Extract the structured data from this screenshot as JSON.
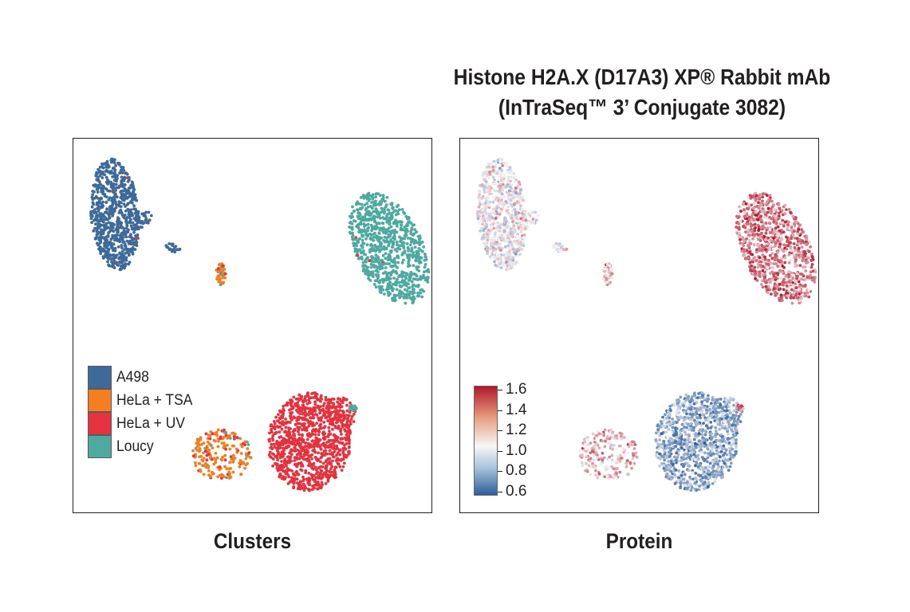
{
  "title": {
    "line1": "Histone H2A.X (D17A3) XP® Rabbit mAb",
    "line2": "(InTraSeq™ 3’ Conjugate 3082)"
  },
  "captions": {
    "left": "Clusters",
    "right": "Protein"
  },
  "legend": [
    {
      "label": "A498",
      "color": "#3e6a9a"
    },
    {
      "label": "HeLa + TSA",
      "color": "#f47e20"
    },
    {
      "label": "HeLa + UV",
      "color": "#e4323f"
    },
    {
      "label": "Loucy",
      "color": "#4ea9a1"
    }
  ],
  "colorbar": {
    "ticks": [
      "1.6",
      "1.4",
      "1.2",
      "1.0",
      "0.8",
      "0.6"
    ],
    "min": 0.6,
    "max": 1.6,
    "low_color": "#2d5d9b",
    "mid_color": "#f7f7f7",
    "high_color": "#b2182b"
  },
  "chart_data": [
    {
      "type": "scatter",
      "panel": "Clusters",
      "xlabel": "",
      "ylabel": "",
      "color_by": "cluster",
      "clusters": [
        {
          "name": "A498",
          "color": "#3e6a9a",
          "approx_center": [
            0.13,
            0.16
          ],
          "approx_cells": 900
        },
        {
          "name": "HeLa + TSA",
          "color": "#f47e20",
          "approx_center": [
            0.4,
            0.88
          ],
          "approx_cells": 220
        },
        {
          "name": "HeLa + UV",
          "color": "#e4323f",
          "approx_center": [
            0.73,
            0.81
          ],
          "approx_cells": 1100
        },
        {
          "name": "Loucy",
          "color": "#4ea9a1",
          "approx_center": [
            0.88,
            0.29
          ],
          "approx_cells": 900
        }
      ],
      "grid": false,
      "legend_position": "bottom-left"
    },
    {
      "type": "scatter",
      "panel": "Protein",
      "xlabel": "",
      "ylabel": "",
      "color_by": "protein expression",
      "colorbar_range": [
        0.6,
        1.6
      ],
      "cluster_mean_expression": [
        {
          "name": "A498",
          "mean": 1.1
        },
        {
          "name": "HeLa + TSA",
          "mean": 1.25
        },
        {
          "name": "HeLa + UV",
          "mean": 0.85
        },
        {
          "name": "Loucy",
          "mean": 1.38
        }
      ],
      "grid": false,
      "legend_position": "bottom-left"
    }
  ]
}
